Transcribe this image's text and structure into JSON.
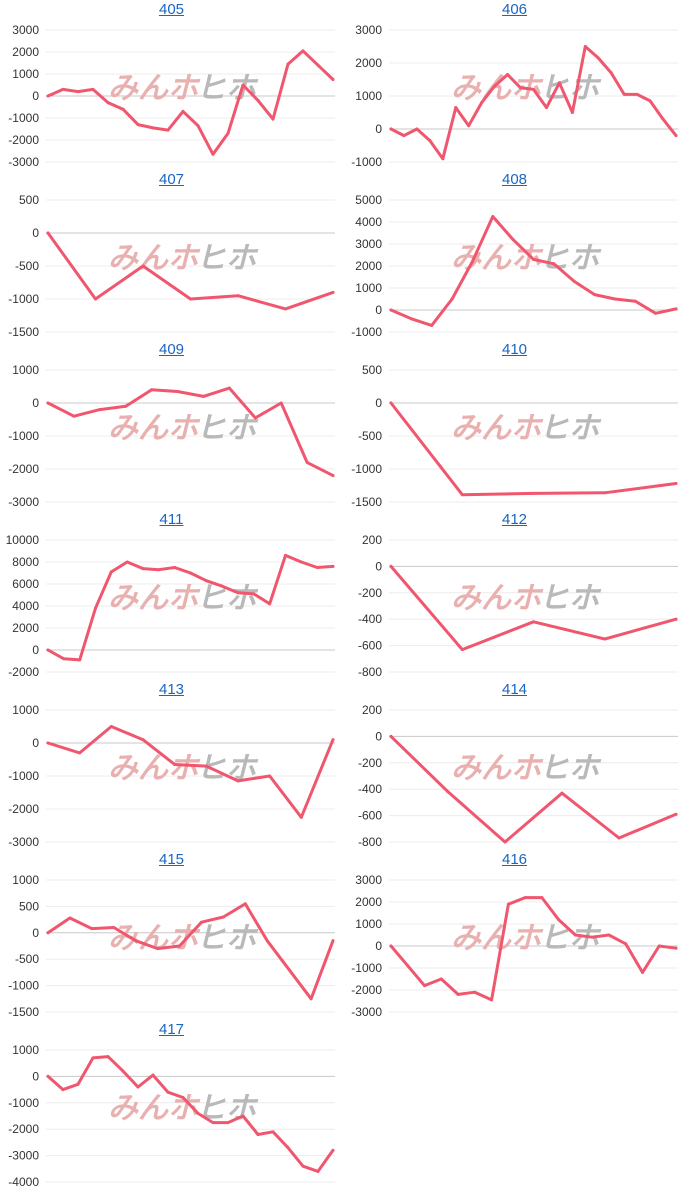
{
  "brand": {
    "watermark_left": "みんホ",
    "watermark_right": "ヒホ",
    "line_color": "#f0566e"
  },
  "charts": [
    {
      "title": "405",
      "type": "line",
      "yticks": [
        3000,
        2000,
        1000,
        0,
        -1000,
        -2000,
        -3000
      ],
      "ylim": [
        -3000,
        3000
      ],
      "values": [
        0,
        300,
        200,
        300,
        -300,
        -600,
        -1300,
        -1450,
        -1550,
        -700,
        -1350,
        -2650,
        -1700,
        500,
        -200,
        -1050,
        1450,
        2050,
        1400,
        750
      ]
    },
    {
      "title": "406",
      "type": "line",
      "yticks": [
        3000,
        2000,
        1000,
        0,
        -1000
      ],
      "ylim": [
        -1000,
        3000
      ],
      "values": [
        0,
        -200,
        0,
        -350,
        -900,
        650,
        100,
        800,
        1300,
        1650,
        1250,
        1200,
        650,
        1400,
        500,
        2500,
        2150,
        1700,
        1050,
        1050,
        850,
        300,
        -200
      ]
    },
    {
      "title": "407",
      "type": "line",
      "yticks": [
        500,
        0,
        -500,
        -1000,
        -1500
      ],
      "ylim": [
        -1500,
        500
      ],
      "values": [
        0,
        -1000,
        -500,
        -1000,
        -950,
        -1150,
        -900
      ]
    },
    {
      "title": "408",
      "type": "line",
      "yticks": [
        5000,
        4000,
        3000,
        2000,
        1000,
        0,
        -1000
      ],
      "ylim": [
        -1000,
        5000
      ],
      "values": [
        0,
        -400,
        -700,
        500,
        2200,
        4250,
        3200,
        2300,
        2100,
        1300,
        700,
        500,
        400,
        -150,
        50
      ]
    },
    {
      "title": "409",
      "type": "line",
      "yticks": [
        1000,
        0,
        -1000,
        -2000,
        -3000
      ],
      "ylim": [
        -3000,
        1000
      ],
      "values": [
        0,
        -400,
        -200,
        -100,
        400,
        350,
        200,
        450,
        -450,
        0,
        -1800,
        -2200
      ]
    },
    {
      "title": "410",
      "type": "line",
      "yticks": [
        500,
        0,
        -500,
        -1000,
        -1500
      ],
      "ylim": [
        -1500,
        500
      ],
      "values": [
        0,
        -1390,
        -1370,
        -1360,
        -1220
      ]
    },
    {
      "title": "411",
      "type": "line",
      "yticks": [
        10000,
        8000,
        6000,
        4000,
        2000,
        0,
        -2000
      ],
      "ylim": [
        -2000,
        10000
      ],
      "values": [
        0,
        -800,
        -900,
        3800,
        7100,
        8000,
        7400,
        7300,
        7500,
        7000,
        6300,
        5800,
        5200,
        5100,
        4200,
        8600,
        8000,
        7500,
        7600
      ]
    },
    {
      "title": "412",
      "type": "line",
      "yticks": [
        200,
        0,
        -200,
        -400,
        -600,
        -800
      ],
      "ylim": [
        -800,
        200
      ],
      "values": [
        0,
        -630,
        -420,
        -550,
        -400
      ]
    },
    {
      "title": "413",
      "type": "line",
      "yticks": [
        1000,
        0,
        -1000,
        -2000,
        -3000
      ],
      "ylim": [
        -3000,
        1000
      ],
      "values": [
        0,
        -300,
        500,
        100,
        -650,
        -700,
        -1150,
        -1000,
        -2250,
        100
      ]
    },
    {
      "title": "414",
      "type": "line",
      "yticks": [
        200,
        0,
        -200,
        -400,
        -600,
        -800
      ],
      "ylim": [
        -800,
        200
      ],
      "values": [
        0,
        -420,
        -800,
        -430,
        -770,
        -590
      ]
    },
    {
      "title": "415",
      "type": "line",
      "yticks": [
        1000,
        500,
        0,
        -500,
        -1000,
        -1500
      ],
      "ylim": [
        -1500,
        1000
      ],
      "values": [
        0,
        280,
        80,
        100,
        -150,
        -300,
        -250,
        200,
        300,
        550,
        -150,
        -700,
        -1250,
        -150
      ]
    },
    {
      "title": "416",
      "type": "line",
      "yticks": [
        3000,
        2000,
        1000,
        0,
        -1000,
        -2000,
        -3000
      ],
      "ylim": [
        -3000,
        3000
      ],
      "values": [
        0,
        -900,
        -1800,
        -1500,
        -2200,
        -2100,
        -2450,
        1900,
        2200,
        2200,
        1200,
        500,
        400,
        500,
        100,
        -1200,
        0,
        -100
      ]
    },
    {
      "title": "417",
      "type": "line",
      "yticks": [
        1000,
        0,
        -1000,
        -2000,
        -3000,
        -4000
      ],
      "ylim": [
        -4000,
        1000
      ],
      "values": [
        0,
        -500,
        -300,
        700,
        750,
        200,
        -400,
        50,
        -600,
        -800,
        -1400,
        -1750,
        -1750,
        -1500,
        -2200,
        -2100,
        -2700,
        -3400,
        -3600,
        -2800
      ]
    }
  ],
  "chart_data": [
    {
      "type": "line",
      "title": "405",
      "values": [
        0,
        300,
        200,
        300,
        -300,
        -600,
        -1300,
        -1450,
        -1550,
        -700,
        -1350,
        -2650,
        -1700,
        500,
        -200,
        -1050,
        1450,
        2050,
        1400,
        750
      ],
      "ylim": [
        -3000,
        3000
      ]
    },
    {
      "type": "line",
      "title": "406",
      "values": [
        0,
        -200,
        0,
        -350,
        -900,
        650,
        100,
        800,
        1300,
        1650,
        1250,
        1200,
        650,
        1400,
        500,
        2500,
        2150,
        1700,
        1050,
        1050,
        850,
        300,
        -200
      ],
      "ylim": [
        -1000,
        3000
      ]
    },
    {
      "type": "line",
      "title": "407",
      "values": [
        0,
        -1000,
        -500,
        -1000,
        -950,
        -1150,
        -900
      ],
      "ylim": [
        -1500,
        500
      ]
    },
    {
      "type": "line",
      "title": "408",
      "values": [
        0,
        -400,
        -700,
        500,
        2200,
        4250,
        3200,
        2300,
        2100,
        1300,
        700,
        500,
        400,
        -150,
        50
      ],
      "ylim": [
        -1000,
        5000
      ]
    },
    {
      "type": "line",
      "title": "409",
      "values": [
        0,
        -400,
        -200,
        -100,
        400,
        350,
        200,
        450,
        -450,
        0,
        -1800,
        -2200
      ],
      "ylim": [
        -3000,
        1000
      ]
    },
    {
      "type": "line",
      "title": "410",
      "values": [
        0,
        -1390,
        -1370,
        -1360,
        -1220
      ],
      "ylim": [
        -1500,
        500
      ]
    },
    {
      "type": "line",
      "title": "411",
      "values": [
        0,
        -800,
        -900,
        3800,
        7100,
        8000,
        7400,
        7300,
        7500,
        7000,
        6300,
        5800,
        5200,
        5100,
        4200,
        8600,
        8000,
        7500,
        7600
      ],
      "ylim": [
        -2000,
        10000
      ]
    },
    {
      "type": "line",
      "title": "412",
      "values": [
        0,
        -630,
        -420,
        -550,
        -400
      ],
      "ylim": [
        -800,
        200
      ]
    },
    {
      "type": "line",
      "title": "413",
      "values": [
        0,
        -300,
        500,
        100,
        -650,
        -700,
        -1150,
        -1000,
        -2250,
        100
      ],
      "ylim": [
        -3000,
        1000
      ]
    },
    {
      "type": "line",
      "title": "414",
      "values": [
        0,
        -420,
        -800,
        -430,
        -770,
        -590
      ],
      "ylim": [
        -800,
        200
      ]
    },
    {
      "type": "line",
      "title": "415",
      "values": [
        0,
        280,
        80,
        100,
        -150,
        -300,
        -250,
        200,
        300,
        550,
        -150,
        -700,
        -1250,
        -150
      ],
      "ylim": [
        -1500,
        1000
      ]
    },
    {
      "type": "line",
      "title": "416",
      "values": [
        0,
        -900,
        -1800,
        -1500,
        -2200,
        -2100,
        -2450,
        1900,
        2200,
        2200,
        1200,
        500,
        400,
        500,
        100,
        -1200,
        0,
        -100
      ],
      "ylim": [
        -3000,
        3000
      ]
    },
    {
      "type": "line",
      "title": "417",
      "values": [
        0,
        -500,
        -300,
        700,
        750,
        200,
        -400,
        50,
        -600,
        -800,
        -1400,
        -1750,
        -1750,
        -1500,
        -2200,
        -2100,
        -2700,
        -3400,
        -3600,
        -2800
      ],
      "ylim": [
        -4000,
        1000
      ]
    }
  ]
}
